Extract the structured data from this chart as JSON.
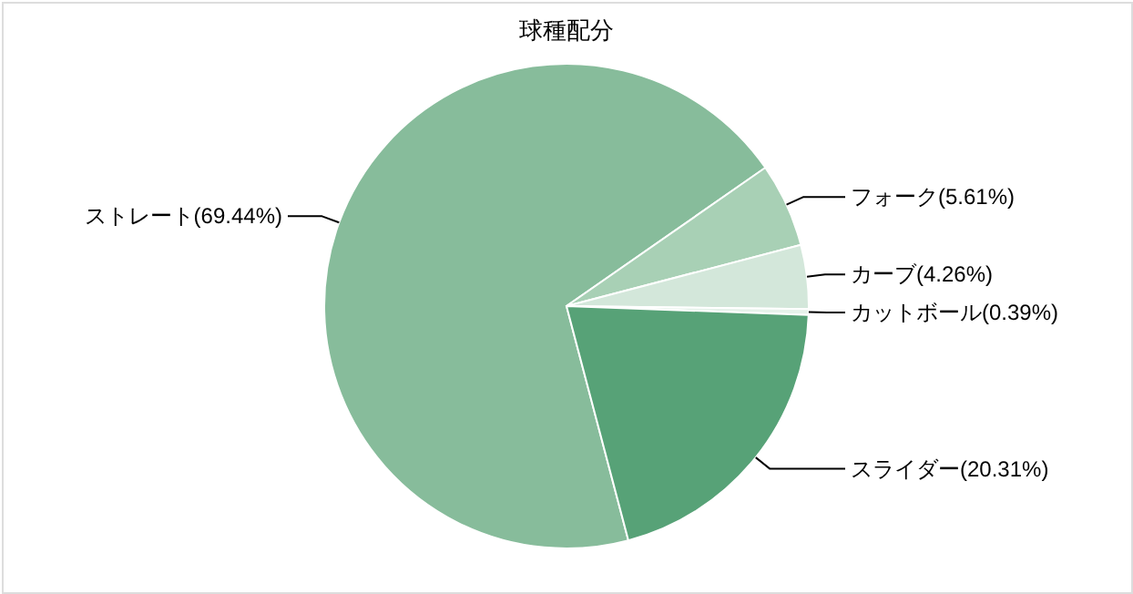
{
  "chart_data": {
    "type": "pie",
    "title": "球種配分",
    "categories": [
      "ストレート",
      "フォーク",
      "カーブ",
      "カットボール",
      "スライダー"
    ],
    "values": [
      69.44,
      5.61,
      4.26,
      0.39,
      20.31
    ],
    "value_labels": [
      "(69.44%)",
      "(5.61%)",
      "(4.26%)",
      "(0.39%)",
      "(20.31%)"
    ],
    "colors": [
      "#87bc9b",
      "#a8d0b5",
      "#d3e7da",
      "#e6f2ea",
      "#57a277"
    ]
  }
}
